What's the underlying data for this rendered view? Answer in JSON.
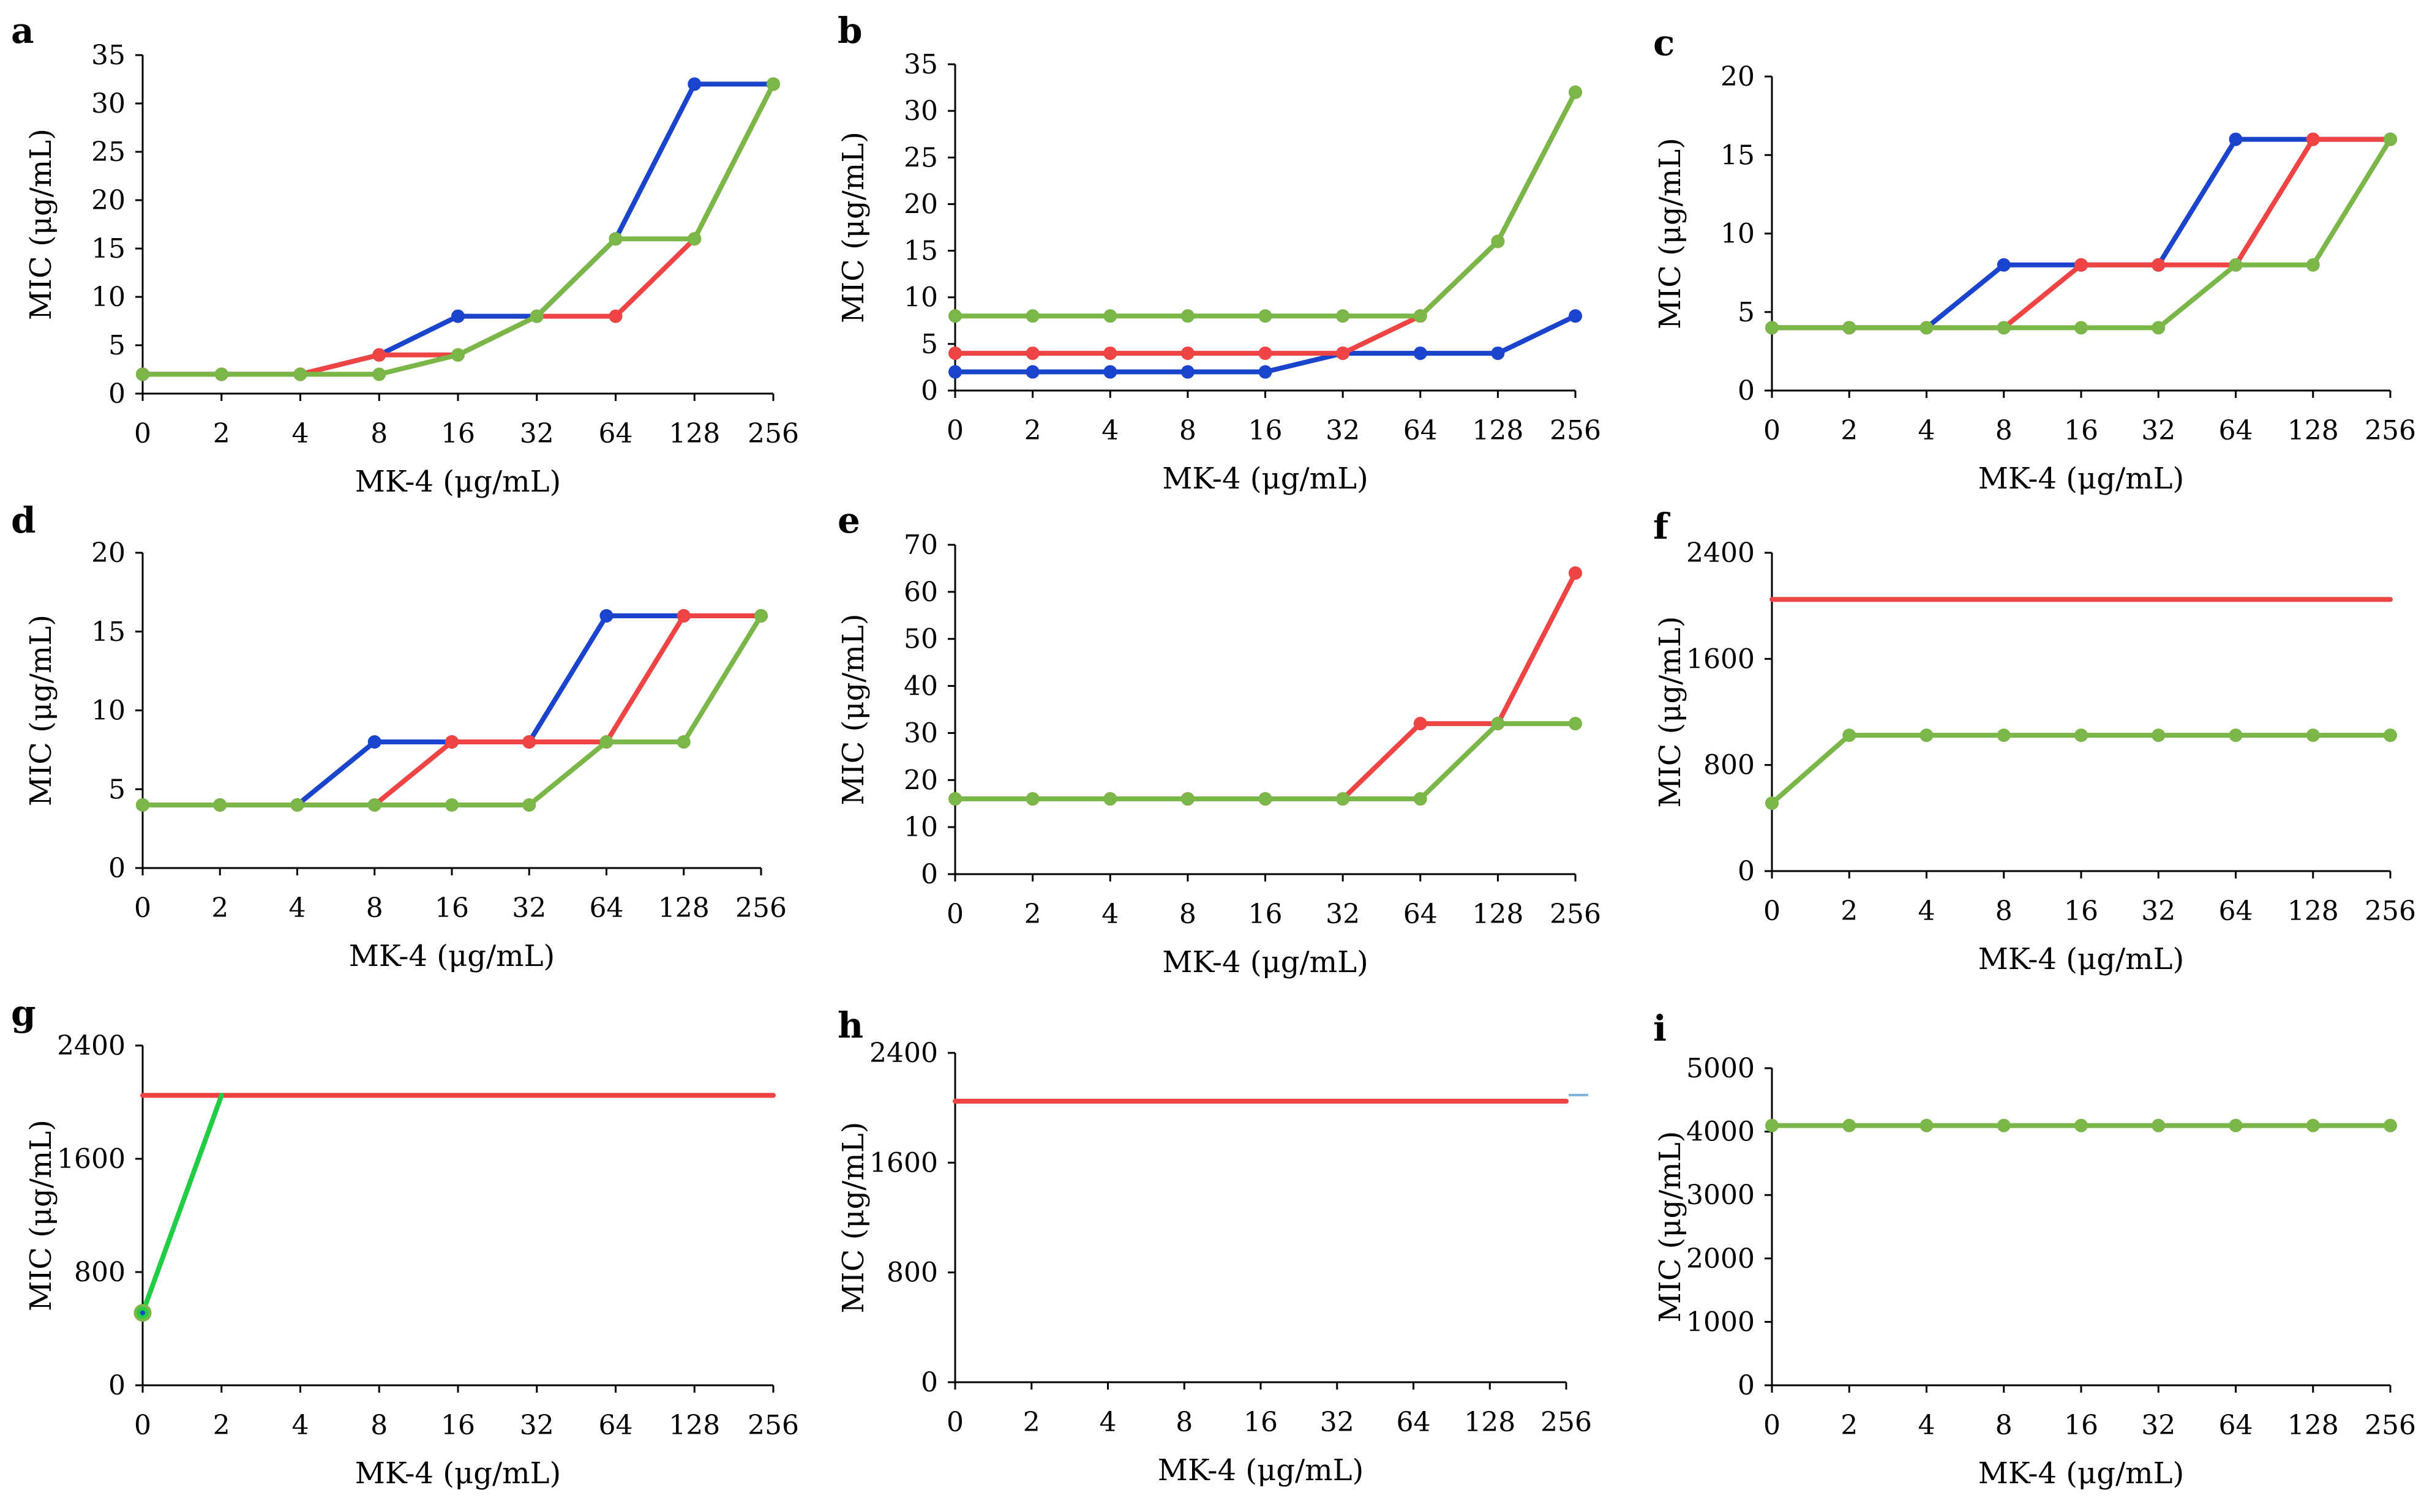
{
  "colors": {
    "blue": "#1a44cc",
    "red": "#ee4444",
    "green": "#7ab648",
    "bright_green": "#22cc44",
    "light_blue": "#7fb2d9"
  },
  "chart_data": [
    {
      "type": "line",
      "panel_label": "a",
      "xlabel": "MK-4 (μg/mL)",
      "ylabel": "MIC (μg/mL)",
      "categories": [
        "0",
        "2",
        "4",
        "8",
        "16",
        "32",
        "64",
        "128",
        "256"
      ],
      "ylim": [
        0,
        35
      ],
      "yticks": [
        0,
        5,
        10,
        15,
        20,
        25,
        30,
        35
      ],
      "series": [
        {
          "color": "blue",
          "markers": true,
          "values": [
            2,
            2,
            2,
            4,
            8,
            8,
            16,
            32,
            32
          ]
        },
        {
          "color": "red",
          "markers": true,
          "values": [
            2,
            2,
            2,
            4,
            4,
            8,
            8,
            16,
            32
          ]
        },
        {
          "color": "green",
          "markers": true,
          "values": [
            2,
            2,
            2,
            2,
            4,
            8,
            16,
            16,
            32
          ]
        }
      ]
    },
    {
      "type": "line",
      "panel_label": "b",
      "xlabel": "MK-4 (μg/mL)",
      "ylabel": "MIC (μg/mL)",
      "categories": [
        "0",
        "2",
        "4",
        "8",
        "16",
        "32",
        "64",
        "128",
        "256"
      ],
      "ylim": [
        0,
        35
      ],
      "yticks": [
        0,
        5,
        10,
        15,
        20,
        25,
        30,
        35
      ],
      "series": [
        {
          "color": "blue",
          "markers": true,
          "values": [
            2,
            2,
            2,
            2,
            2,
            4,
            4,
            4,
            8
          ]
        },
        {
          "color": "red",
          "markers": true,
          "values": [
            4,
            4,
            4,
            4,
            4,
            4,
            8,
            16,
            32
          ]
        },
        {
          "color": "green",
          "markers": true,
          "values": [
            8,
            8,
            8,
            8,
            8,
            8,
            8,
            16,
            32
          ]
        }
      ]
    },
    {
      "type": "line",
      "panel_label": "c",
      "xlabel": "MK-4 (μg/mL)",
      "ylabel": "MIC (μg/mL)",
      "categories": [
        "0",
        "2",
        "4",
        "8",
        "16",
        "32",
        "64",
        "128",
        "256"
      ],
      "ylim": [
        0,
        20
      ],
      "yticks": [
        0,
        5,
        10,
        15,
        20
      ],
      "series": [
        {
          "color": "blue",
          "markers": true,
          "values": [
            4,
            4,
            4,
            8,
            8,
            8,
            16,
            16,
            16
          ]
        },
        {
          "color": "red",
          "markers": true,
          "values": [
            4,
            4,
            4,
            4,
            8,
            8,
            8,
            16,
            16
          ]
        },
        {
          "color": "green",
          "markers": true,
          "values": [
            4,
            4,
            4,
            4,
            4,
            4,
            8,
            8,
            16
          ]
        }
      ]
    },
    {
      "type": "line",
      "panel_label": "d",
      "xlabel": "MK-4 (μg/mL)",
      "ylabel": "MIC (μg/mL)",
      "categories": [
        "0",
        "2",
        "4",
        "8",
        "16",
        "32",
        "64",
        "128",
        "256"
      ],
      "ylim": [
        0,
        20
      ],
      "yticks": [
        0,
        5,
        10,
        15,
        20
      ],
      "series": [
        {
          "color": "blue",
          "markers": true,
          "values": [
            4,
            4,
            4,
            8,
            8,
            8,
            16,
            16,
            16
          ]
        },
        {
          "color": "red",
          "markers": true,
          "values": [
            4,
            4,
            4,
            4,
            8,
            8,
            8,
            16,
            16
          ]
        },
        {
          "color": "green",
          "markers": true,
          "values": [
            4,
            4,
            4,
            4,
            4,
            4,
            8,
            8,
            16
          ]
        }
      ]
    },
    {
      "type": "line",
      "panel_label": "e",
      "xlabel": "MK-4 (μg/mL)",
      "ylabel": "MIC (μg/mL)",
      "categories": [
        "0",
        "2",
        "4",
        "8",
        "16",
        "32",
        "64",
        "128",
        "256"
      ],
      "ylim": [
        0,
        70
      ],
      "yticks": [
        0,
        10,
        20,
        30,
        40,
        50,
        60,
        70
      ],
      "series": [
        {
          "color": "red",
          "markers": true,
          "values": [
            16,
            16,
            16,
            16,
            16,
            16,
            32,
            32,
            64
          ]
        },
        {
          "color": "green",
          "markers": true,
          "values": [
            16,
            16,
            16,
            16,
            16,
            16,
            16,
            32,
            32
          ]
        }
      ]
    },
    {
      "type": "line",
      "panel_label": "f",
      "xlabel": "MK-4 (μg/mL)",
      "ylabel": "MIC (μg/mL)",
      "categories": [
        "0",
        "2",
        "4",
        "8",
        "16",
        "32",
        "64",
        "128",
        "256"
      ],
      "ylim": [
        0,
        2400
      ],
      "yticks": [
        0,
        800,
        1600,
        2400
      ],
      "series": [
        {
          "color": "red",
          "markers": false,
          "values": [
            2048,
            2048,
            2048,
            2048,
            2048,
            2048,
            2048,
            2048,
            2048
          ]
        },
        {
          "color": "green",
          "markers": true,
          "values": [
            512,
            1024,
            1024,
            1024,
            1024,
            1024,
            1024,
            1024,
            1024
          ]
        }
      ]
    },
    {
      "type": "line",
      "panel_label": "g",
      "xlabel": "MK-4 (μg/mL)",
      "ylabel": "MIC (μg/mL)",
      "categories": [
        "0",
        "2",
        "4",
        "8",
        "16",
        "32",
        "64",
        "128",
        "256"
      ],
      "ylim": [
        0,
        2400
      ],
      "yticks": [
        0,
        800,
        1600,
        2400
      ],
      "series": [
        {
          "color": "red",
          "markers": false,
          "values": [
            2048,
            2048,
            2048,
            2048,
            2048,
            2048,
            2048,
            2048,
            2048
          ]
        },
        {
          "color": "bright_green",
          "markers": false,
          "values": [
            512,
            2048,
            null,
            null,
            null,
            null,
            null,
            null,
            null
          ],
          "first_marker": true
        }
      ]
    },
    {
      "type": "line",
      "panel_label": "h",
      "xlabel": "MK-4 (μg/mL)",
      "ylabel": "MIC (μg/mL)",
      "categories": [
        "0",
        "2",
        "4",
        "8",
        "16",
        "32",
        "64",
        "128",
        "256"
      ],
      "ylim": [
        0,
        2400
      ],
      "yticks": [
        0,
        800,
        1600,
        2400
      ],
      "series": [
        {
          "color": "red",
          "markers": false,
          "values": [
            2048,
            2048,
            2048,
            2048,
            2048,
            2048,
            2048,
            2048,
            2048
          ]
        }
      ]
    },
    {
      "type": "line",
      "panel_label": "i",
      "xlabel": "MK-4 (μg/mL)",
      "ylabel": "MIC (μg/mL)",
      "categories": [
        "0",
        "2",
        "4",
        "8",
        "16",
        "32",
        "64",
        "128",
        "256"
      ],
      "ylim": [
        0,
        5000
      ],
      "yticks": [
        0,
        1000,
        2000,
        3000,
        4000,
        5000
      ],
      "series": [
        {
          "color": "green",
          "markers": true,
          "values": [
            4096,
            4096,
            4096,
            4096,
            4096,
            4096,
            4096,
            4096,
            4096
          ]
        }
      ]
    }
  ]
}
